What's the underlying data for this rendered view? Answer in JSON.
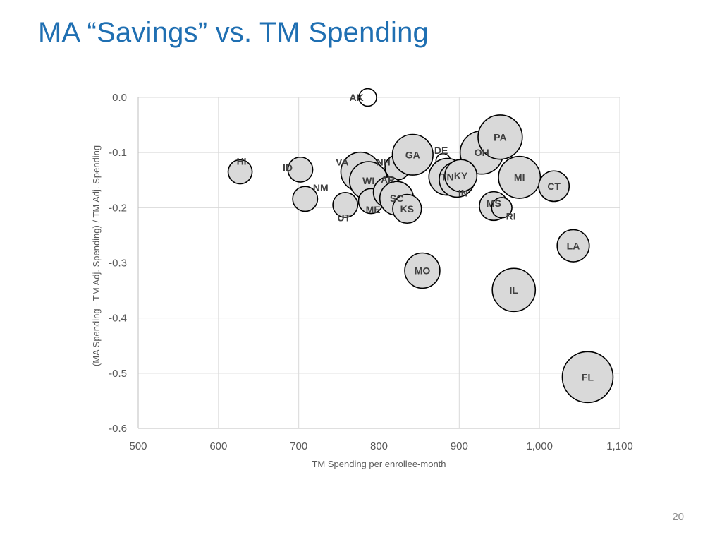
{
  "slide": {
    "title": "MA “Savings” vs. TM Spending",
    "page_number": "20"
  },
  "chart_data": {
    "type": "scatter",
    "title": "",
    "xlabel": "TM Spending per enrollee-month",
    "ylabel": "(MA Spending - TM Adj. Spending) / TM Adj. Spending",
    "xlim": [
      500,
      1100
    ],
    "ylim": [
      -0.6,
      0.0
    ],
    "x_ticks": [
      500,
      600,
      700,
      800,
      900,
      1000,
      1100
    ],
    "x_tick_labels": [
      "500",
      "600",
      "700",
      "800",
      "900",
      "1,000",
      "1,100"
    ],
    "y_ticks": [
      0.0,
      -0.1,
      -0.2,
      -0.3,
      -0.4,
      -0.5,
      -0.6
    ],
    "y_tick_labels": [
      "0.0",
      "-0.1",
      "-0.2",
      "-0.3",
      "-0.4",
      "-0.5",
      "-0.6"
    ],
    "grid": true,
    "legend": "none",
    "bubble_fill": "#d9d9d9",
    "bubble_stroke": "#000000",
    "text_color": "#404040",
    "axis_text_color": "#595959",
    "title_color": "#1f6fb2",
    "note": "bubble size varies by state",
    "points": [
      {
        "label": "AK",
        "x": 786,
        "y": 0.0,
        "size": 0.15
      },
      {
        "label": "HI",
        "x": 627,
        "y": -0.135,
        "size": 0.28
      },
      {
        "label": "ID",
        "x": 702,
        "y": -0.131,
        "size": 0.3
      },
      {
        "label": "NM",
        "x": 708,
        "y": -0.184,
        "size": 0.3
      },
      {
        "label": "UT",
        "x": 758,
        "y": -0.195,
        "size": 0.3
      },
      {
        "label": "VA",
        "x": 777,
        "y": -0.135,
        "size": 0.75
      },
      {
        "label": "WI",
        "x": 787,
        "y": -0.151,
        "size": 0.7
      },
      {
        "label": "ME",
        "x": 790,
        "y": -0.188,
        "size": 0.3
      },
      {
        "label": "NH",
        "x": 823,
        "y": -0.127,
        "size": 0.3
      },
      {
        "label": "AR",
        "x": 812,
        "y": -0.172,
        "size": 0.45
      },
      {
        "label": "SC",
        "x": 822,
        "y": -0.183,
        "size": 0.55
      },
      {
        "label": "KS",
        "x": 835,
        "y": -0.202,
        "size": 0.4
      },
      {
        "label": "GA",
        "x": 842,
        "y": -0.104,
        "size": 0.8
      },
      {
        "label": "DE",
        "x": 880,
        "y": -0.115,
        "size": 0.1
      },
      {
        "label": "TN",
        "x": 885,
        "y": -0.144,
        "size": 0.65
      },
      {
        "label": "IN",
        "x": 897,
        "y": -0.149,
        "size": 0.6
      },
      {
        "label": "OH",
        "x": 928,
        "y": -0.1,
        "size": 0.9
      },
      {
        "label": "PA",
        "x": 951,
        "y": -0.072,
        "size": 0.95
      },
      {
        "label": "KY",
        "x": 902,
        "y": -0.142,
        "size": 0.5
      },
      {
        "label": "MS",
        "x": 943,
        "y": -0.197,
        "size": 0.4
      },
      {
        "label": "RI",
        "x": 953,
        "y": -0.2,
        "size": 0.2
      },
      {
        "label": "MI",
        "x": 975,
        "y": -0.145,
        "size": 0.85
      },
      {
        "label": "CT",
        "x": 1018,
        "y": -0.161,
        "size": 0.45
      },
      {
        "label": "MO",
        "x": 854,
        "y": -0.314,
        "size": 0.6
      },
      {
        "label": "IL",
        "x": 968,
        "y": -0.349,
        "size": 0.9
      },
      {
        "label": "LA",
        "x": 1042,
        "y": -0.269,
        "size": 0.5
      },
      {
        "label": "FL",
        "x": 1060,
        "y": -0.507,
        "size": 1.25
      }
    ]
  }
}
